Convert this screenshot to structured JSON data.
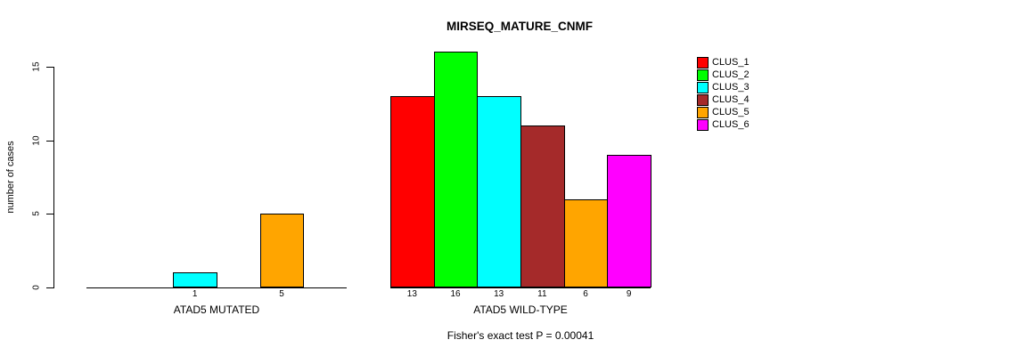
{
  "chart_data": {
    "type": "bar",
    "title": "MIRSEQ_MATURE_CNMF",
    "ylabel": "number of cases",
    "ylim": [
      0,
      16
    ],
    "yticks": [
      0,
      5,
      10,
      15
    ],
    "grid": false,
    "legend_position": "right",
    "clusters": [
      {
        "name": "CLUS_1",
        "color": "#FF0000"
      },
      {
        "name": "CLUS_2",
        "color": "#00FF00"
      },
      {
        "name": "CLUS_3",
        "color": "#00FFFF"
      },
      {
        "name": "CLUS_4",
        "color": "#A52A2A"
      },
      {
        "name": "CLUS_5",
        "color": "#FFA500"
      },
      {
        "name": "CLUS_6",
        "color": "#FF00FF"
      }
    ],
    "groups": [
      {
        "label": "ATAD5 MUTATED",
        "values": [
          0,
          0,
          1,
          0,
          5,
          0
        ]
      },
      {
        "label": "ATAD5 WILD-TYPE",
        "values": [
          13,
          16,
          13,
          11,
          6,
          9
        ]
      }
    ],
    "annotation": "Fisher's exact test P = 0.00041"
  }
}
